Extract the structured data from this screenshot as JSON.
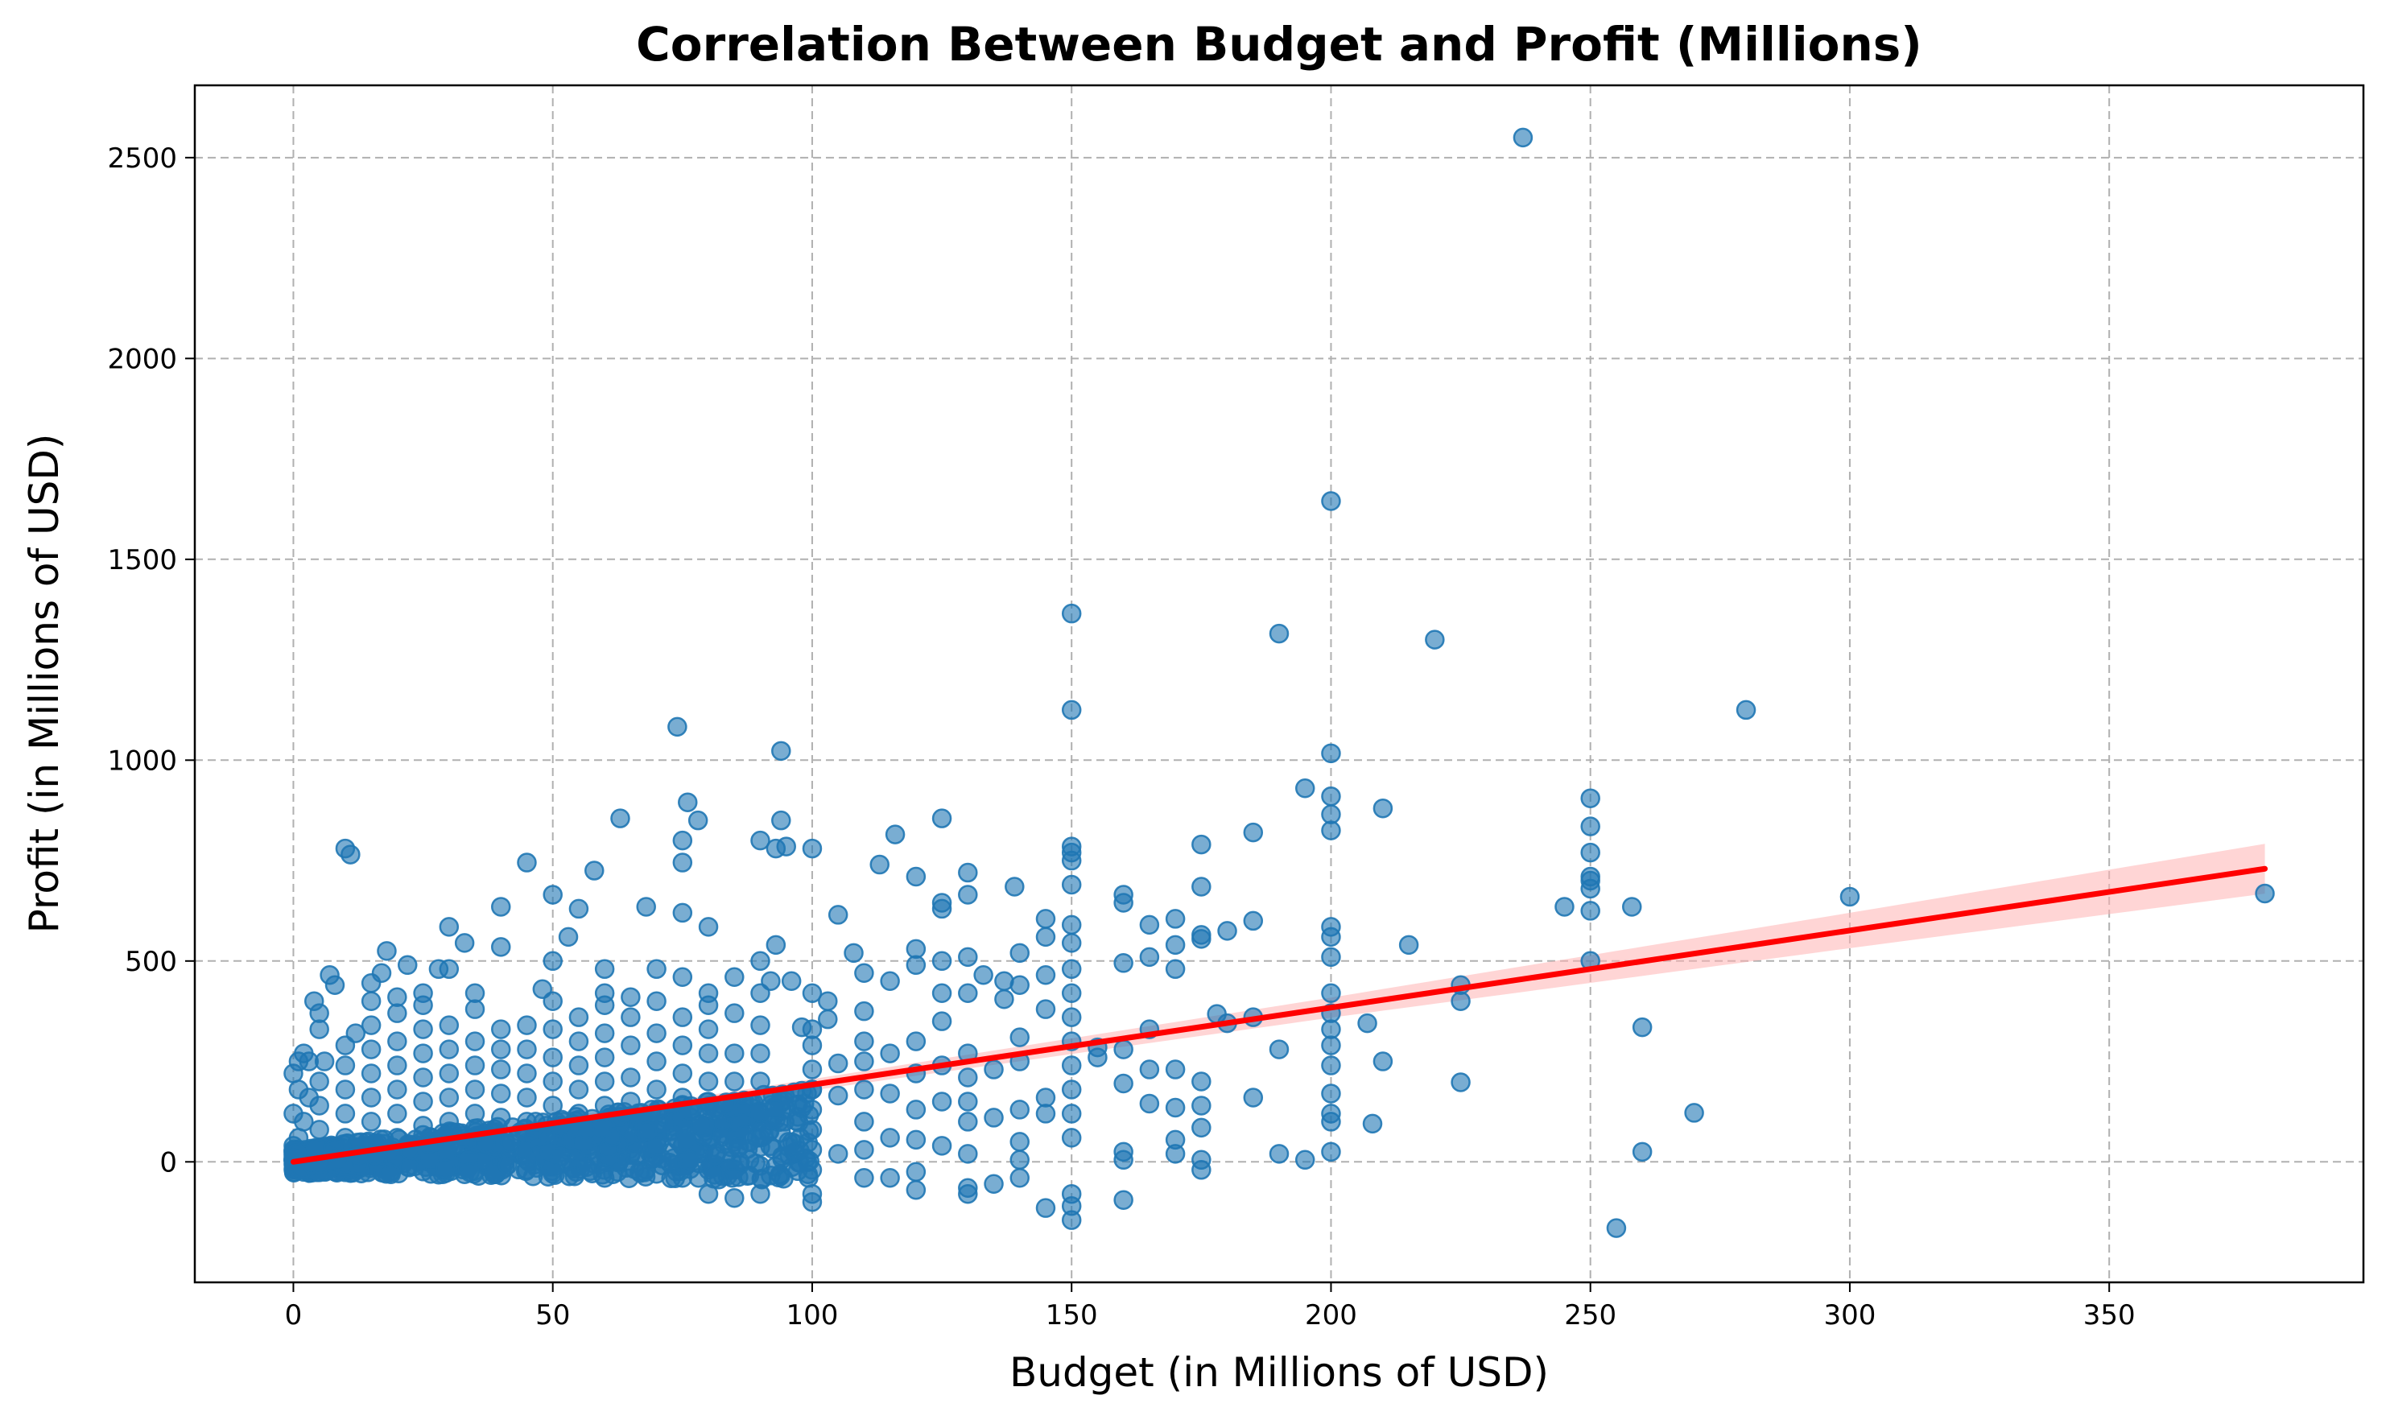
{
  "chart_data": {
    "type": "scatter",
    "title": "Correlation Between Budget and Profit (Millions)",
    "xlabel": "Budget (in Millions of USD)",
    "ylabel": "Profit (in Millions of USD)",
    "xlim": [
      -19,
      399
    ],
    "ylim": [
      -300,
      2680
    ],
    "xticks": [
      0,
      50,
      100,
      150,
      200,
      250,
      300,
      350
    ],
    "yticks": [
      0,
      500,
      1000,
      1500,
      2000,
      2500
    ],
    "grid": true,
    "point_color": "#1f77b4",
    "regression": {
      "color": "#ff0000",
      "band_color": "#ffb3b3",
      "intercept": 0,
      "slope": 1.92,
      "x_range": [
        0,
        380
      ],
      "ci_halfwidth_at": [
        [
          0,
          6
        ],
        [
          100,
          14
        ],
        [
          200,
          25
        ],
        [
          300,
          44
        ],
        [
          380,
          62
        ]
      ]
    },
    "points": [
      [
        237,
        2550
      ],
      [
        200,
        1645
      ],
      [
        150,
        1365
      ],
      [
        190,
        1315
      ],
      [
        220,
        1300
      ],
      [
        150,
        1125
      ],
      [
        280,
        1125
      ],
      [
        74,
        1083
      ],
      [
        94,
        1023
      ],
      [
        200,
        1017
      ],
      [
        195,
        930
      ],
      [
        76,
        895
      ],
      [
        200,
        910
      ],
      [
        210,
        880
      ],
      [
        200,
        865
      ],
      [
        200,
        825
      ],
      [
        185,
        820
      ],
      [
        250,
        905
      ],
      [
        250,
        835
      ],
      [
        250,
        770
      ],
      [
        250,
        710
      ],
      [
        250,
        700
      ],
      [
        250,
        680
      ],
      [
        250,
        625
      ],
      [
        250,
        500
      ],
      [
        245,
        635
      ],
      [
        258,
        635
      ],
      [
        215,
        540
      ],
      [
        175,
        790
      ],
      [
        175,
        685
      ],
      [
        175,
        565
      ],
      [
        175,
        555
      ],
      [
        180,
        575
      ],
      [
        185,
        600
      ],
      [
        170,
        605
      ],
      [
        165,
        590
      ],
      [
        160,
        665
      ],
      [
        160,
        645
      ],
      [
        300,
        660
      ],
      [
        380,
        668
      ],
      [
        260,
        335
      ],
      [
        270,
        122
      ],
      [
        260,
        25
      ],
      [
        255,
        -165
      ],
      [
        225,
        440
      ],
      [
        225,
        400
      ],
      [
        225,
        198
      ],
      [
        208,
        95
      ],
      [
        210,
        250
      ],
      [
        207,
        345
      ],
      [
        200,
        585
      ],
      [
        200,
        560
      ],
      [
        200,
        510
      ],
      [
        200,
        420
      ],
      [
        200,
        370
      ],
      [
        200,
        330
      ],
      [
        200,
        290
      ],
      [
        200,
        240
      ],
      [
        200,
        170
      ],
      [
        200,
        120
      ],
      [
        200,
        100
      ],
      [
        200,
        25
      ],
      [
        190,
        280
      ],
      [
        190,
        20
      ],
      [
        195,
        5
      ],
      [
        185,
        360
      ],
      [
        185,
        160
      ],
      [
        180,
        345
      ],
      [
        178,
        368
      ],
      [
        175,
        200
      ],
      [
        175,
        140
      ],
      [
        175,
        85
      ],
      [
        175,
        -20
      ],
      [
        175,
        5
      ],
      [
        170,
        540
      ],
      [
        170,
        480
      ],
      [
        170,
        230
      ],
      [
        170,
        135
      ],
      [
        170,
        55
      ],
      [
        170,
        20
      ],
      [
        165,
        330
      ],
      [
        165,
        510
      ],
      [
        165,
        230
      ],
      [
        165,
        145
      ],
      [
        160,
        495
      ],
      [
        160,
        280
      ],
      [
        160,
        195
      ],
      [
        160,
        25
      ],
      [
        160,
        5
      ],
      [
        160,
        -95
      ],
      [
        155,
        285
      ],
      [
        155,
        260
      ],
      [
        150,
        785
      ],
      [
        150,
        770
      ],
      [
        150,
        750
      ],
      [
        150,
        690
      ],
      [
        150,
        590
      ],
      [
        150,
        545
      ],
      [
        150,
        480
      ],
      [
        150,
        420
      ],
      [
        150,
        360
      ],
      [
        150,
        300
      ],
      [
        150,
        240
      ],
      [
        150,
        180
      ],
      [
        150,
        120
      ],
      [
        150,
        60
      ],
      [
        150,
        -80
      ],
      [
        150,
        -110
      ],
      [
        150,
        -145
      ],
      [
        145,
        605
      ],
      [
        145,
        560
      ],
      [
        145,
        465
      ],
      [
        145,
        380
      ],
      [
        145,
        160
      ],
      [
        145,
        120
      ],
      [
        145,
        -115
      ],
      [
        140,
        520
      ],
      [
        140,
        440
      ],
      [
        140,
        310
      ],
      [
        140,
        250
      ],
      [
        140,
        130
      ],
      [
        140,
        50
      ],
      [
        140,
        5
      ],
      [
        140,
        -40
      ],
      [
        139,
        685
      ],
      [
        137,
        405
      ],
      [
        137,
        450
      ],
      [
        135,
        230
      ],
      [
        135,
        110
      ],
      [
        135,
        -55
      ],
      [
        133,
        465
      ],
      [
        130,
        720
      ],
      [
        130,
        665
      ],
      [
        130,
        510
      ],
      [
        130,
        420
      ],
      [
        130,
        270
      ],
      [
        130,
        210
      ],
      [
        130,
        150
      ],
      [
        130,
        100
      ],
      [
        130,
        20
      ],
      [
        130,
        -65
      ],
      [
        130,
        -80
      ],
      [
        125,
        855
      ],
      [
        125,
        645
      ],
      [
        125,
        630
      ],
      [
        125,
        500
      ],
      [
        125,
        420
      ],
      [
        125,
        350
      ],
      [
        125,
        240
      ],
      [
        125,
        150
      ],
      [
        125,
        40
      ],
      [
        120,
        710
      ],
      [
        120,
        530
      ],
      [
        120,
        490
      ],
      [
        120,
        300
      ],
      [
        120,
        220
      ],
      [
        120,
        130
      ],
      [
        120,
        55
      ],
      [
        120,
        -25
      ],
      [
        120,
        -70
      ],
      [
        116,
        815
      ],
      [
        115,
        450
      ],
      [
        115,
        270
      ],
      [
        115,
        170
      ],
      [
        115,
        60
      ],
      [
        115,
        -40
      ],
      [
        113,
        740
      ],
      [
        110,
        470
      ],
      [
        110,
        375
      ],
      [
        110,
        300
      ],
      [
        110,
        250
      ],
      [
        110,
        180
      ],
      [
        110,
        100
      ],
      [
        110,
        30
      ],
      [
        110,
        -40
      ],
      [
        108,
        520
      ],
      [
        105,
        615
      ],
      [
        105,
        245
      ],
      [
        105,
        165
      ],
      [
        105,
        20
      ],
      [
        103,
        400
      ],
      [
        103,
        355
      ],
      [
        100,
        780
      ],
      [
        100,
        420
      ],
      [
        100,
        330
      ],
      [
        100,
        290
      ],
      [
        100,
        230
      ],
      [
        100,
        180
      ],
      [
        100,
        130
      ],
      [
        100,
        80
      ],
      [
        100,
        30
      ],
      [
        100,
        -20
      ],
      [
        100,
        -80
      ],
      [
        100,
        -100
      ],
      [
        98,
        335
      ],
      [
        96,
        450
      ],
      [
        95,
        785
      ],
      [
        94,
        850
      ],
      [
        93,
        780
      ],
      [
        93,
        540
      ],
      [
        92,
        450
      ],
      [
        90,
        800
      ],
      [
        90,
        500
      ],
      [
        90,
        420
      ],
      [
        90,
        340
      ],
      [
        90,
        270
      ],
      [
        90,
        200
      ],
      [
        90,
        120
      ],
      [
        90,
        60
      ],
      [
        90,
        -10
      ],
      [
        90,
        -80
      ],
      [
        85,
        460
      ],
      [
        85,
        370
      ],
      [
        85,
        270
      ],
      [
        85,
        200
      ],
      [
        85,
        150
      ],
      [
        85,
        100
      ],
      [
        85,
        50
      ],
      [
        85,
        -20
      ],
      [
        85,
        -90
      ],
      [
        80,
        585
      ],
      [
        80,
        420
      ],
      [
        80,
        390
      ],
      [
        80,
        330
      ],
      [
        80,
        270
      ],
      [
        80,
        200
      ],
      [
        80,
        150
      ],
      [
        80,
        100
      ],
      [
        80,
        50
      ],
      [
        80,
        -20
      ],
      [
        80,
        -80
      ],
      [
        78,
        850
      ],
      [
        75,
        800
      ],
      [
        75,
        745
      ],
      [
        75,
        620
      ],
      [
        75,
        460
      ],
      [
        75,
        360
      ],
      [
        75,
        290
      ],
      [
        75,
        220
      ],
      [
        75,
        160
      ],
      [
        75,
        100
      ],
      [
        75,
        40
      ],
      [
        75,
        -40
      ],
      [
        70,
        480
      ],
      [
        70,
        400
      ],
      [
        70,
        320
      ],
      [
        70,
        250
      ],
      [
        70,
        180
      ],
      [
        70,
        120
      ],
      [
        70,
        50
      ],
      [
        70,
        -30
      ],
      [
        68,
        635
      ],
      [
        65,
        410
      ],
      [
        65,
        360
      ],
      [
        65,
        290
      ],
      [
        65,
        210
      ],
      [
        65,
        150
      ],
      [
        65,
        90
      ],
      [
        65,
        20
      ],
      [
        63,
        855
      ],
      [
        60,
        480
      ],
      [
        60,
        420
      ],
      [
        60,
        390
      ],
      [
        60,
        320
      ],
      [
        60,
        260
      ],
      [
        60,
        200
      ],
      [
        60,
        140
      ],
      [
        60,
        80
      ],
      [
        60,
        20
      ],
      [
        60,
        -40
      ],
      [
        58,
        725
      ],
      [
        55,
        630
      ],
      [
        55,
        360
      ],
      [
        55,
        300
      ],
      [
        55,
        240
      ],
      [
        55,
        180
      ],
      [
        55,
        120
      ],
      [
        55,
        60
      ],
      [
        55,
        -10
      ],
      [
        53,
        560
      ],
      [
        50,
        665
      ],
      [
        50,
        500
      ],
      [
        50,
        400
      ],
      [
        50,
        330
      ],
      [
        50,
        260
      ],
      [
        50,
        200
      ],
      [
        50,
        140
      ],
      [
        50,
        80
      ],
      [
        50,
        20
      ],
      [
        50,
        -30
      ],
      [
        48,
        430
      ],
      [
        45,
        745
      ],
      [
        45,
        340
      ],
      [
        45,
        280
      ],
      [
        45,
        220
      ],
      [
        45,
        160
      ],
      [
        45,
        100
      ],
      [
        45,
        40
      ],
      [
        45,
        -20
      ],
      [
        40,
        635
      ],
      [
        40,
        535
      ],
      [
        40,
        330
      ],
      [
        40,
        280
      ],
      [
        40,
        230
      ],
      [
        40,
        170
      ],
      [
        40,
        110
      ],
      [
        40,
        50
      ],
      [
        40,
        -10
      ],
      [
        35,
        380
      ],
      [
        35,
        420
      ],
      [
        35,
        300
      ],
      [
        35,
        240
      ],
      [
        35,
        180
      ],
      [
        35,
        120
      ],
      [
        35,
        60
      ],
      [
        35,
        0
      ],
      [
        33,
        545
      ],
      [
        30,
        585
      ],
      [
        30,
        480
      ],
      [
        30,
        340
      ],
      [
        30,
        280
      ],
      [
        30,
        220
      ],
      [
        30,
        160
      ],
      [
        30,
        100
      ],
      [
        30,
        40
      ],
      [
        28,
        480
      ],
      [
        25,
        420
      ],
      [
        25,
        390
      ],
      [
        25,
        330
      ],
      [
        25,
        270
      ],
      [
        25,
        210
      ],
      [
        25,
        150
      ],
      [
        25,
        90
      ],
      [
        25,
        30
      ],
      [
        22,
        490
      ],
      [
        20,
        410
      ],
      [
        20,
        370
      ],
      [
        20,
        300
      ],
      [
        20,
        240
      ],
      [
        20,
        180
      ],
      [
        20,
        120
      ],
      [
        20,
        60
      ],
      [
        20,
        10
      ],
      [
        18,
        525
      ],
      [
        17,
        470
      ],
      [
        15,
        445
      ],
      [
        15,
        400
      ],
      [
        15,
        340
      ],
      [
        15,
        280
      ],
      [
        15,
        220
      ],
      [
        15,
        160
      ],
      [
        15,
        100
      ],
      [
        15,
        40
      ],
      [
        12,
        320
      ],
      [
        11,
        765
      ],
      [
        10,
        780
      ],
      [
        10,
        290
      ],
      [
        10,
        240
      ],
      [
        10,
        180
      ],
      [
        10,
        120
      ],
      [
        10,
        60
      ],
      [
        10,
        10
      ],
      [
        8,
        440
      ],
      [
        7,
        465
      ],
      [
        6,
        250
      ],
      [
        5,
        370
      ],
      [
        5,
        330
      ],
      [
        5,
        200
      ],
      [
        5,
        140
      ],
      [
        5,
        80
      ],
      [
        5,
        30
      ],
      [
        4,
        400
      ],
      [
        3,
        250
      ],
      [
        3,
        160
      ],
      [
        2,
        270
      ],
      [
        2,
        100
      ],
      [
        1,
        250
      ],
      [
        1,
        180
      ],
      [
        1,
        60
      ],
      [
        0,
        220
      ],
      [
        0,
        120
      ],
      [
        0,
        40
      ],
      [
        0,
        5
      ]
    ]
  }
}
